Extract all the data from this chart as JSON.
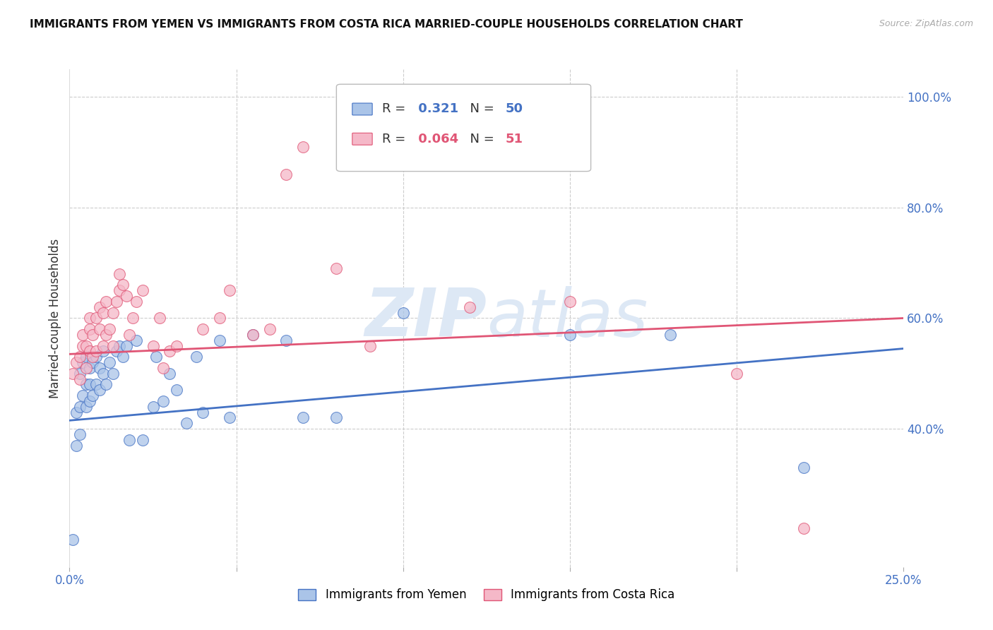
{
  "title": "IMMIGRANTS FROM YEMEN VS IMMIGRANTS FROM COSTA RICA MARRIED-COUPLE HOUSEHOLDS CORRELATION CHART",
  "source": "Source: ZipAtlas.com",
  "ylabel": "Married-couple Households",
  "xlim": [
    0.0,
    0.25
  ],
  "ylim": [
    0.15,
    1.05
  ],
  "legend1_label": "Immigrants from Yemen",
  "legend2_label": "Immigrants from Costa Rica",
  "R1": 0.321,
  "N1": 50,
  "R2": 0.064,
  "N2": 51,
  "color_yemen_fill": "#aac4e8",
  "color_costa_rica_fill": "#f5b8c8",
  "color_line_yemen": "#4472C4",
  "color_line_costa_rica": "#e05575",
  "color_axis": "#4472C4",
  "color_grid": "#cccccc",
  "watermark_color": "#dde8f5",
  "yemen_line_y0": 0.415,
  "yemen_line_y1": 0.545,
  "cr_line_y0": 0.535,
  "cr_line_y1": 0.6,
  "yemen_x": [
    0.001,
    0.002,
    0.002,
    0.003,
    0.003,
    0.003,
    0.004,
    0.004,
    0.005,
    0.005,
    0.005,
    0.006,
    0.006,
    0.006,
    0.007,
    0.007,
    0.008,
    0.008,
    0.009,
    0.009,
    0.01,
    0.01,
    0.011,
    0.012,
    0.013,
    0.014,
    0.015,
    0.016,
    0.017,
    0.018,
    0.02,
    0.022,
    0.025,
    0.026,
    0.028,
    0.03,
    0.032,
    0.035,
    0.038,
    0.04,
    0.045,
    0.048,
    0.055,
    0.065,
    0.07,
    0.08,
    0.1,
    0.15,
    0.18,
    0.22
  ],
  "yemen_y": [
    0.2,
    0.37,
    0.43,
    0.39,
    0.44,
    0.5,
    0.46,
    0.52,
    0.44,
    0.48,
    0.53,
    0.45,
    0.48,
    0.51,
    0.46,
    0.52,
    0.48,
    0.53,
    0.47,
    0.51,
    0.5,
    0.54,
    0.48,
    0.52,
    0.5,
    0.54,
    0.55,
    0.53,
    0.55,
    0.38,
    0.56,
    0.38,
    0.44,
    0.53,
    0.45,
    0.5,
    0.47,
    0.41,
    0.53,
    0.43,
    0.56,
    0.42,
    0.57,
    0.56,
    0.42,
    0.42,
    0.61,
    0.57,
    0.57,
    0.33
  ],
  "cr_x": [
    0.001,
    0.002,
    0.003,
    0.003,
    0.004,
    0.004,
    0.005,
    0.005,
    0.006,
    0.006,
    0.006,
    0.007,
    0.007,
    0.008,
    0.008,
    0.009,
    0.009,
    0.01,
    0.01,
    0.011,
    0.011,
    0.012,
    0.013,
    0.013,
    0.014,
    0.015,
    0.015,
    0.016,
    0.017,
    0.018,
    0.019,
    0.02,
    0.022,
    0.025,
    0.027,
    0.028,
    0.03,
    0.032,
    0.04,
    0.045,
    0.048,
    0.055,
    0.06,
    0.065,
    0.07,
    0.08,
    0.09,
    0.12,
    0.15,
    0.2,
    0.22
  ],
  "cr_y": [
    0.5,
    0.52,
    0.49,
    0.53,
    0.55,
    0.57,
    0.51,
    0.55,
    0.54,
    0.58,
    0.6,
    0.53,
    0.57,
    0.54,
    0.6,
    0.58,
    0.62,
    0.55,
    0.61,
    0.57,
    0.63,
    0.58,
    0.55,
    0.61,
    0.63,
    0.65,
    0.68,
    0.66,
    0.64,
    0.57,
    0.6,
    0.63,
    0.65,
    0.55,
    0.6,
    0.51,
    0.54,
    0.55,
    0.58,
    0.6,
    0.65,
    0.57,
    0.58,
    0.86,
    0.91,
    0.69,
    0.55,
    0.62,
    0.63,
    0.5,
    0.22
  ]
}
